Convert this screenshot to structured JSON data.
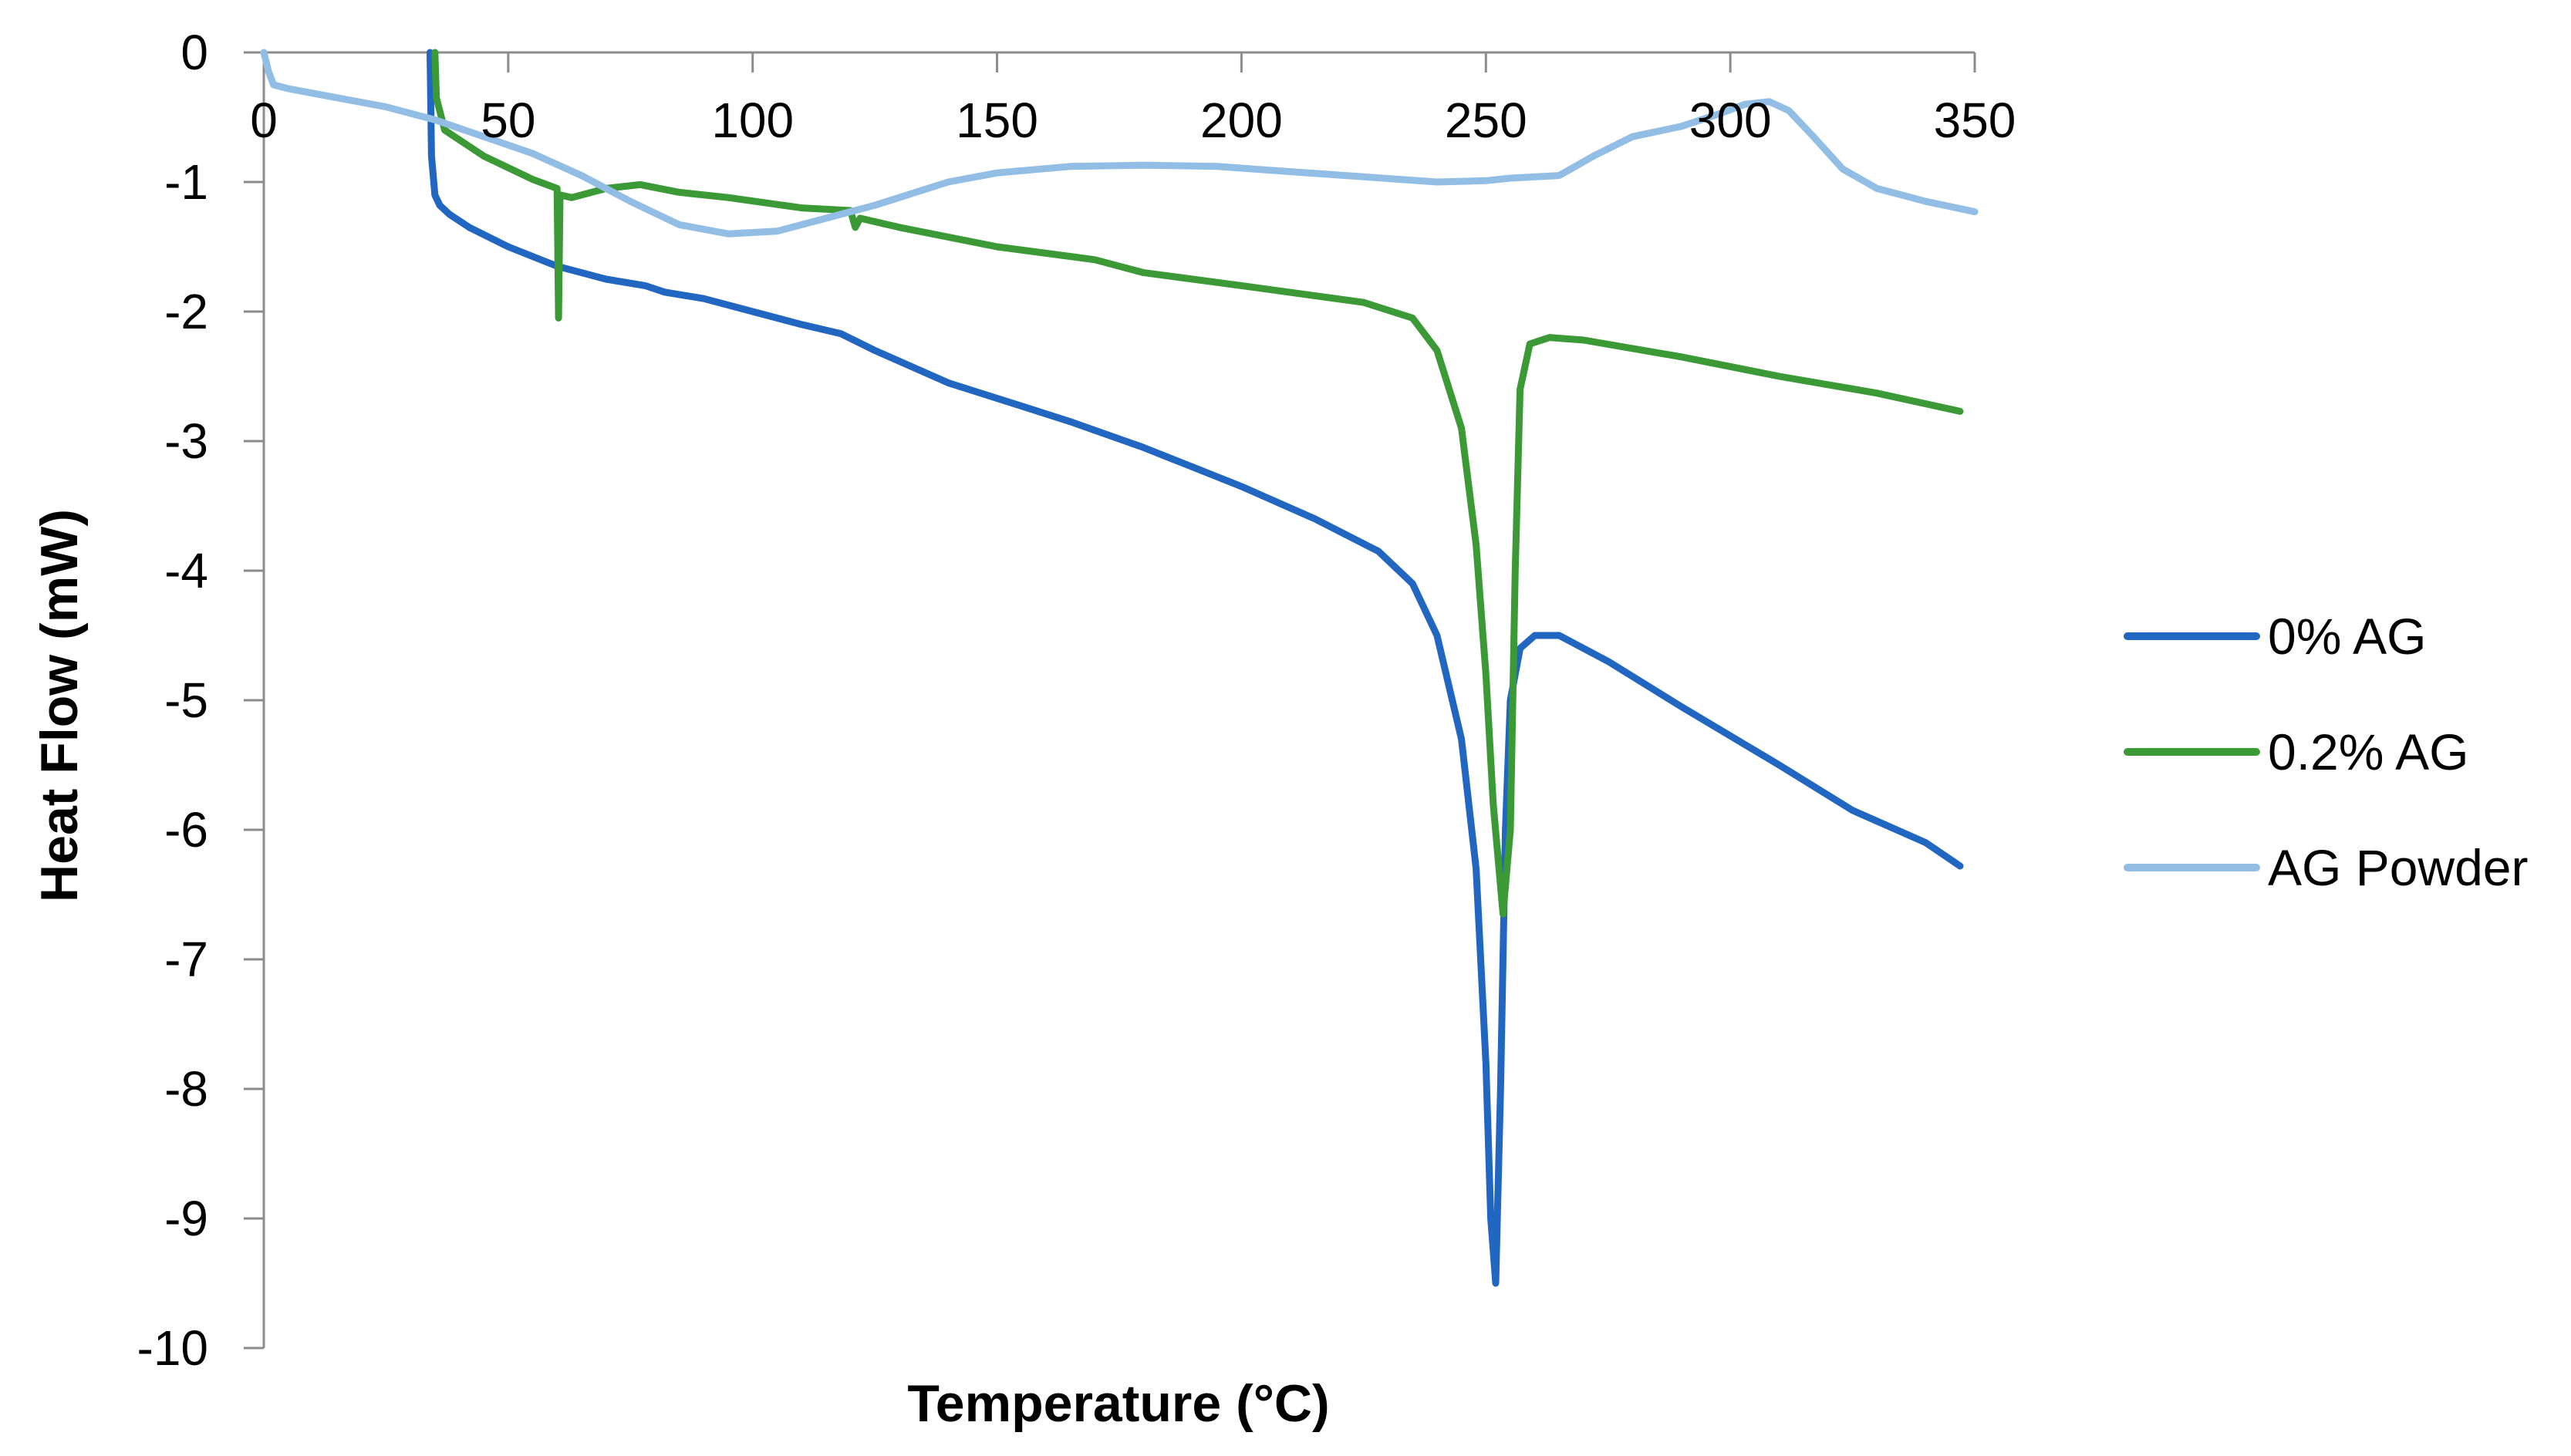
{
  "chart_data": {
    "type": "line",
    "title": "",
    "xlabel": "Temperature (°C)",
    "ylabel": "Heat Flow (mW)",
    "xlim": [
      0,
      350
    ],
    "ylim": [
      -10,
      0
    ],
    "xticks": [
      0,
      50,
      100,
      150,
      200,
      250,
      300,
      350
    ],
    "yticks": [
      0,
      -1,
      -2,
      -3,
      -4,
      -5,
      -6,
      -7,
      -8,
      -9,
      -10
    ],
    "x_axis_position": "top",
    "grid": false,
    "legend": "right",
    "series": [
      {
        "name": "0% AG",
        "color": "#2166C0",
        "points": [
          [
            34,
            0
          ],
          [
            34.3,
            -0.8
          ],
          [
            35,
            -1.1
          ],
          [
            36,
            -1.18
          ],
          [
            38,
            -1.25
          ],
          [
            42,
            -1.35
          ],
          [
            50,
            -1.5
          ],
          [
            60,
            -1.65
          ],
          [
            70,
            -1.75
          ],
          [
            78,
            -1.8
          ],
          [
            82,
            -1.85
          ],
          [
            90,
            -1.9
          ],
          [
            100,
            -2.0
          ],
          [
            110,
            -2.1
          ],
          [
            118,
            -2.17
          ],
          [
            125,
            -2.3
          ],
          [
            140,
            -2.55
          ],
          [
            155,
            -2.73
          ],
          [
            165,
            -2.85
          ],
          [
            180,
            -3.05
          ],
          [
            200,
            -3.35
          ],
          [
            215,
            -3.6
          ],
          [
            228,
            -3.85
          ],
          [
            235,
            -4.1
          ],
          [
            240,
            -4.5
          ],
          [
            245,
            -5.3
          ],
          [
            248,
            -6.3
          ],
          [
            250,
            -7.8
          ],
          [
            251,
            -9.0
          ],
          [
            252,
            -9.5
          ],
          [
            253,
            -8.0
          ],
          [
            254,
            -6.0
          ],
          [
            255,
            -5.0
          ],
          [
            257,
            -4.6
          ],
          [
            260,
            -4.5
          ],
          [
            265,
            -4.5
          ],
          [
            275,
            -4.7
          ],
          [
            290,
            -5.05
          ],
          [
            310,
            -5.5
          ],
          [
            325,
            -5.85
          ],
          [
            340,
            -6.1
          ],
          [
            347,
            -6.28
          ]
        ]
      },
      {
        "name": "0.2% AG",
        "color": "#3C9A36",
        "points": [
          [
            35,
            0
          ],
          [
            35.3,
            -0.35
          ],
          [
            37,
            -0.6
          ],
          [
            45,
            -0.8
          ],
          [
            55,
            -0.98
          ],
          [
            60,
            -1.05
          ],
          [
            60.3,
            -2.05
          ],
          [
            60.6,
            -1.1
          ],
          [
            63,
            -1.12
          ],
          [
            70,
            -1.05
          ],
          [
            77,
            -1.02
          ],
          [
            85,
            -1.08
          ],
          [
            95,
            -1.12
          ],
          [
            110,
            -1.2
          ],
          [
            120,
            -1.22
          ],
          [
            121,
            -1.35
          ],
          [
            122,
            -1.28
          ],
          [
            130,
            -1.35
          ],
          [
            150,
            -1.5
          ],
          [
            170,
            -1.6
          ],
          [
            180,
            -1.7
          ],
          [
            200,
            -1.8
          ],
          [
            225,
            -1.93
          ],
          [
            235,
            -2.05
          ],
          [
            240,
            -2.3
          ],
          [
            245,
            -2.9
          ],
          [
            248,
            -3.8
          ],
          [
            250,
            -4.8
          ],
          [
            251.5,
            -5.8
          ],
          [
            253.5,
            -6.65
          ],
          [
            255,
            -6.0
          ],
          [
            256,
            -4.0
          ],
          [
            257,
            -2.6
          ],
          [
            259,
            -2.25
          ],
          [
            263,
            -2.2
          ],
          [
            270,
            -2.22
          ],
          [
            290,
            -2.35
          ],
          [
            310,
            -2.5
          ],
          [
            330,
            -2.63
          ],
          [
            347,
            -2.77
          ]
        ]
      },
      {
        "name": "AG Powder",
        "color": "#92BEE5",
        "points": [
          [
            0,
            0
          ],
          [
            1,
            -0.15
          ],
          [
            2,
            -0.25
          ],
          [
            5,
            -0.28
          ],
          [
            15,
            -0.35
          ],
          [
            25,
            -0.42
          ],
          [
            35,
            -0.52
          ],
          [
            45,
            -0.65
          ],
          [
            55,
            -0.78
          ],
          [
            65,
            -0.95
          ],
          [
            75,
            -1.15
          ],
          [
            85,
            -1.33
          ],
          [
            95,
            -1.4
          ],
          [
            105,
            -1.38
          ],
          [
            115,
            -1.28
          ],
          [
            125,
            -1.18
          ],
          [
            140,
            -1.0
          ],
          [
            150,
            -0.93
          ],
          [
            165,
            -0.88
          ],
          [
            180,
            -0.87
          ],
          [
            195,
            -0.88
          ],
          [
            210,
            -0.92
          ],
          [
            225,
            -0.96
          ],
          [
            240,
            -1.0
          ],
          [
            250,
            -0.99
          ],
          [
            255,
            -0.97
          ],
          [
            265,
            -0.95
          ],
          [
            272,
            -0.8
          ],
          [
            280,
            -0.65
          ],
          [
            290,
            -0.57
          ],
          [
            298,
            -0.47
          ],
          [
            303,
            -0.4
          ],
          [
            308,
            -0.38
          ],
          [
            312,
            -0.45
          ],
          [
            317,
            -0.65
          ],
          [
            323,
            -0.9
          ],
          [
            330,
            -1.05
          ],
          [
            340,
            -1.15
          ],
          [
            350,
            -1.23
          ]
        ]
      }
    ]
  }
}
